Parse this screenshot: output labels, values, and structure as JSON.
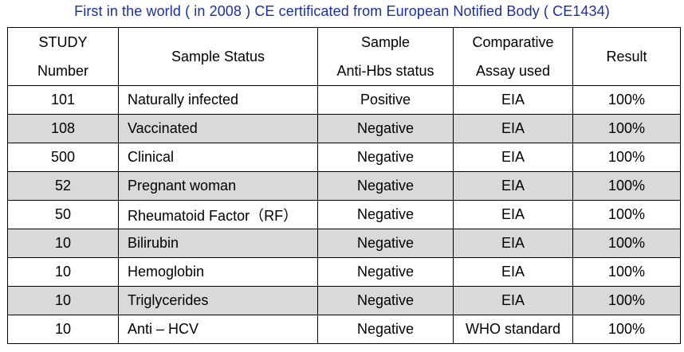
{
  "title": "First  in the  world ( in 2008 ) CE certificated  from European  Notified  Body ( CE1434)",
  "table": {
    "headers": [
      {
        "line1": "STUDY",
        "line2": "Number"
      },
      {
        "line1": "Sample Status",
        "line2": ""
      },
      {
        "line1": "Sample",
        "line2": "Anti-Hbs status"
      },
      {
        "line1": "Comparative",
        "line2": "Assay used"
      },
      {
        "line1": "Result",
        "line2": ""
      }
    ],
    "rows": [
      {
        "number": "101",
        "status": "Naturally  infected",
        "antihbs": "Positive",
        "assay": "EIA",
        "result": "100%"
      },
      {
        "number": "108",
        "status": "Vaccinated",
        "antihbs": "Negative",
        "assay": "EIA",
        "result": "100%"
      },
      {
        "number": "500",
        "status": "Clinical",
        "antihbs": "Negative",
        "assay": "EIA",
        "result": "100%"
      },
      {
        "number": "52",
        "status": "Pregnant woman",
        "antihbs": "Negative",
        "assay": "EIA",
        "result": "100%"
      },
      {
        "number": "50",
        "status": "Rheumatoid Factor（RF）",
        "antihbs": "Negative",
        "assay": "EIA",
        "result": "100%"
      },
      {
        "number": "10",
        "status": "Bilirubin",
        "antihbs": "Negative",
        "assay": "EIA",
        "result": "100%"
      },
      {
        "number": "10",
        "status": "Hemoglobin",
        "antihbs": "Negative",
        "assay": "EIA",
        "result": "100%"
      },
      {
        "number": "10",
        "status": "Triglycerides",
        "antihbs": "Negative",
        "assay": "EIA",
        "result": "100%"
      },
      {
        "number": "10",
        "status": "Anti – HCV",
        "antihbs": "Negative",
        "assay": "WHO standard",
        "result": "100%"
      }
    ]
  },
  "colors": {
    "title": "#1d2f9e",
    "shaded_row": "#d9d9d9",
    "border": "#000000"
  }
}
